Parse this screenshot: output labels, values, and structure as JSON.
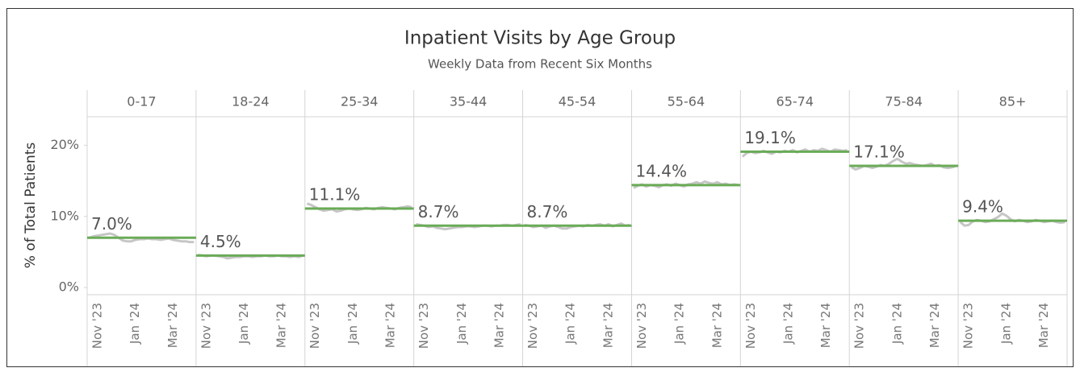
{
  "chart_data": {
    "type": "line",
    "title": "Inpatient Visits by Age Group",
    "subtitle": "Weekly Data from Recent Six Months",
    "y_label": "% of Total Patients",
    "ylim": [
      -1,
      24
    ],
    "yticks": [
      {
        "value": 0,
        "label": "0%"
      },
      {
        "value": 10,
        "label": "10%"
      },
      {
        "value": 20,
        "label": "20%"
      }
    ],
    "categories": [
      null,
      null,
      "Nov '23",
      null,
      null,
      null,
      null,
      null,
      null,
      null,
      null,
      "Jan '24",
      null,
      null,
      null,
      null,
      null,
      null,
      null,
      null,
      "Mar '24",
      null,
      null,
      null,
      null,
      null
    ],
    "line_color": "#c6c6c6",
    "mean_color": "#6aab57",
    "series": [
      {
        "name": "0-17",
        "mean": 7.0,
        "mean_label": "7.0%",
        "values": [
          7.0,
          7.2,
          7.3,
          7.4,
          7.5,
          7.6,
          7.4,
          7.0,
          6.6,
          6.5,
          6.5,
          6.7,
          6.8,
          6.8,
          6.9,
          6.8,
          6.8,
          6.7,
          6.8,
          6.9,
          6.7,
          6.6,
          6.5,
          6.5,
          6.4,
          6.4
        ]
      },
      {
        "name": "18-24",
        "mean": 4.5,
        "mean_label": "4.5%",
        "values": [
          4.6,
          4.5,
          4.4,
          4.5,
          4.5,
          4.4,
          4.3,
          4.1,
          4.2,
          4.3,
          4.3,
          4.4,
          4.4,
          4.3,
          4.4,
          4.4,
          4.5,
          4.4,
          4.4,
          4.5,
          4.4,
          4.4,
          4.3,
          4.4,
          4.3,
          4.5
        ]
      },
      {
        "name": "25-34",
        "mean": 11.1,
        "mean_label": "11.1%",
        "values": [
          11.8,
          11.6,
          11.3,
          11.0,
          10.8,
          10.9,
          11.0,
          10.7,
          10.8,
          11.0,
          11.1,
          11.0,
          10.9,
          11.0,
          11.2,
          11.1,
          11.0,
          11.2,
          11.3,
          11.2,
          11.1,
          11.0,
          11.2,
          11.3,
          11.4,
          11.3
        ]
      },
      {
        "name": "35-44",
        "mean": 8.7,
        "mean_label": "8.7%",
        "values": [
          8.9,
          8.8,
          8.7,
          8.5,
          8.6,
          8.4,
          8.3,
          8.2,
          8.3,
          8.4,
          8.5,
          8.5,
          8.6,
          8.6,
          8.5,
          8.6,
          8.7,
          8.7,
          8.6,
          8.7,
          8.7,
          8.8,
          8.8,
          8.7,
          8.8,
          8.9
        ]
      },
      {
        "name": "45-54",
        "mean": 8.7,
        "mean_label": "8.7%",
        "values": [
          8.8,
          8.7,
          8.5,
          8.6,
          8.7,
          8.4,
          8.6,
          8.7,
          8.5,
          8.3,
          8.3,
          8.5,
          8.6,
          8.7,
          8.6,
          8.8,
          8.7,
          8.8,
          8.9,
          8.7,
          8.9,
          8.6,
          8.8,
          9.0,
          8.7,
          8.8
        ]
      },
      {
        "name": "55-64",
        "mean": 14.4,
        "mean_label": "14.4%",
        "values": [
          14.0,
          14.3,
          14.5,
          14.2,
          14.4,
          14.3,
          14.1,
          14.4,
          14.5,
          14.3,
          14.6,
          14.4,
          14.2,
          14.5,
          14.6,
          14.8,
          14.6,
          14.9,
          14.7,
          14.6,
          14.8,
          14.5,
          14.6,
          14.4,
          14.5,
          14.4
        ]
      },
      {
        "name": "65-74",
        "mean": 19.1,
        "mean_label": "19.1%",
        "values": [
          18.4,
          18.9,
          19.1,
          18.9,
          19.0,
          19.2,
          19.0,
          18.8,
          19.1,
          19.0,
          19.2,
          19.1,
          19.3,
          19.0,
          19.2,
          19.4,
          19.1,
          19.3,
          19.2,
          19.5,
          19.3,
          19.1,
          19.4,
          19.3,
          19.2,
          19.3
        ]
      },
      {
        "name": "75-84",
        "mean": 17.1,
        "mean_label": "17.1%",
        "values": [
          16.9,
          16.6,
          16.8,
          17.1,
          17.0,
          16.8,
          17.0,
          17.2,
          17.1,
          17.4,
          17.8,
          18.1,
          17.7,
          17.4,
          17.5,
          17.3,
          17.2,
          17.1,
          17.2,
          17.4,
          17.1,
          17.2,
          16.9,
          16.8,
          16.9,
          17.1
        ]
      },
      {
        "name": "85+",
        "mean": 9.4,
        "mean_label": "9.4%",
        "values": [
          9.2,
          8.7,
          8.8,
          9.3,
          9.5,
          9.4,
          9.2,
          9.3,
          9.6,
          9.9,
          10.4,
          10.1,
          9.6,
          9.3,
          9.5,
          9.4,
          9.2,
          9.3,
          9.5,
          9.4,
          9.2,
          9.3,
          9.4,
          9.2,
          9.1,
          9.2
        ]
      }
    ]
  }
}
